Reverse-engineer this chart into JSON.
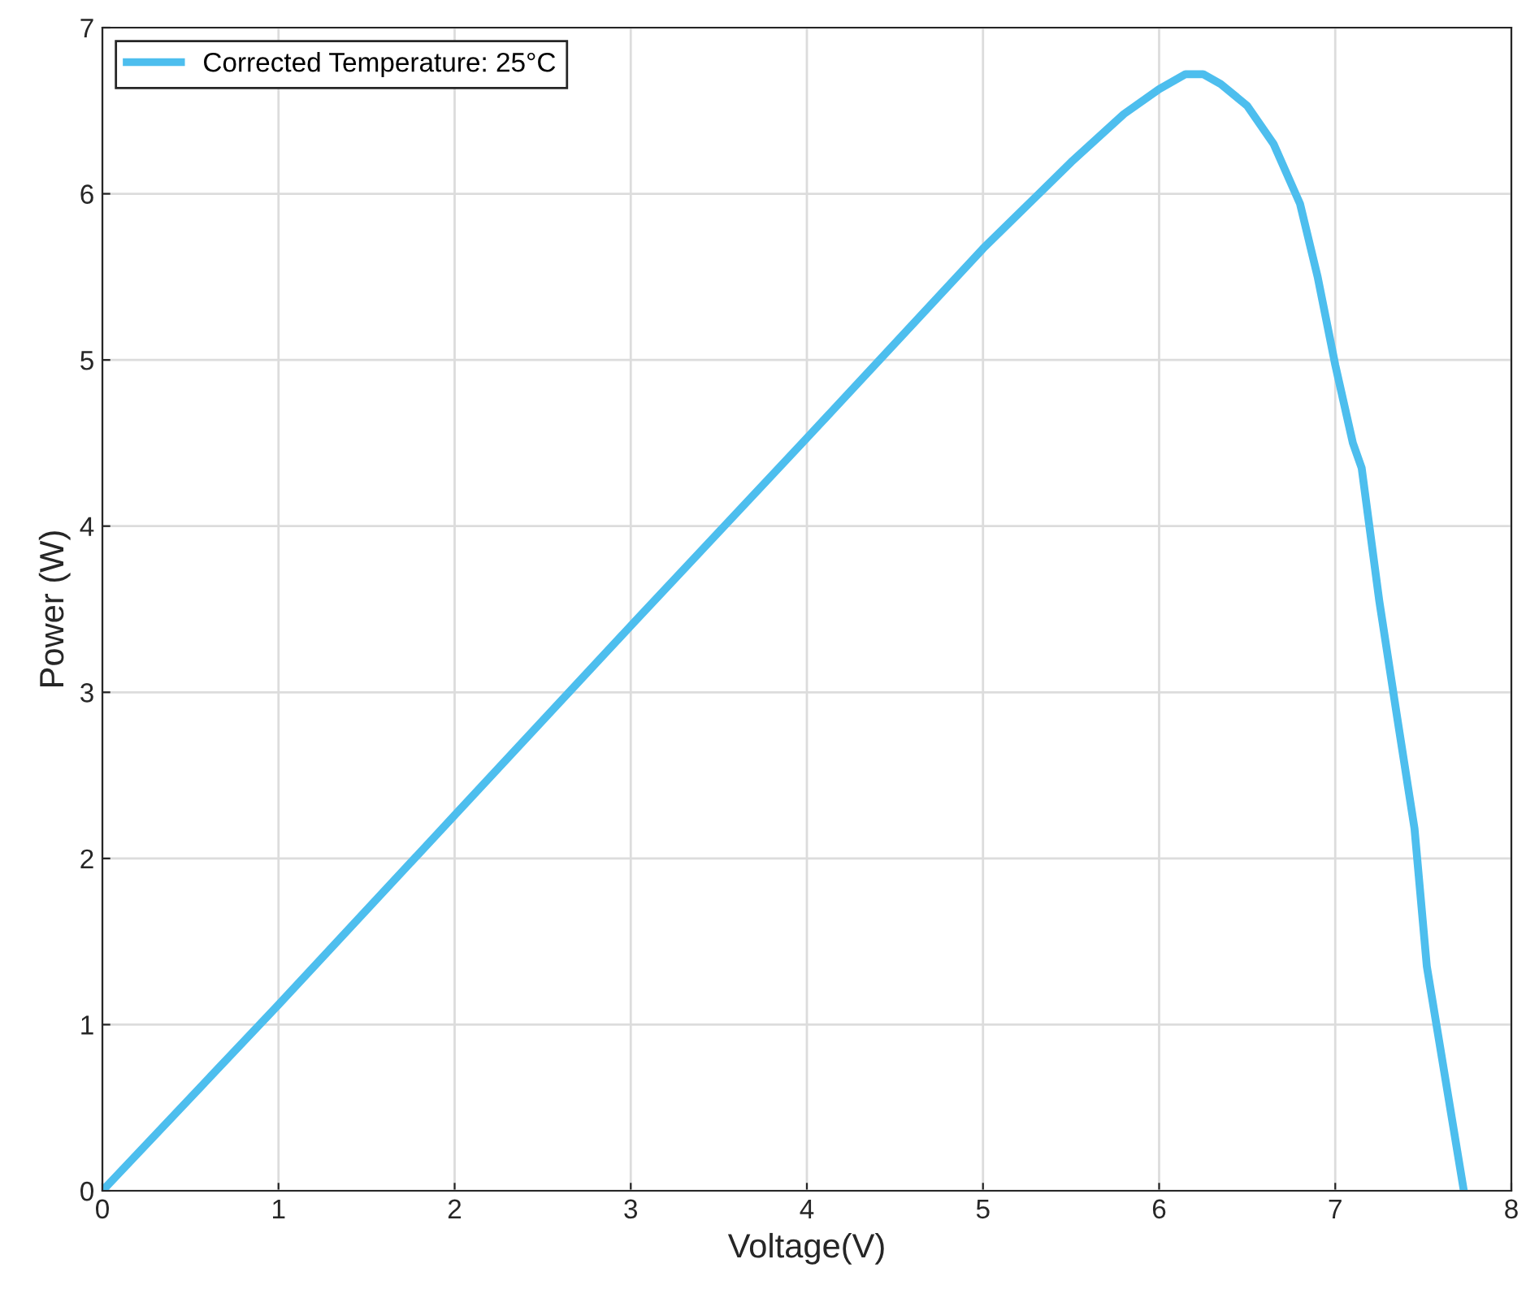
{
  "chart_data": {
    "type": "line",
    "xlabel": "Voltage(V)",
    "ylabel": "Power (W)",
    "series": [
      {
        "name": "Corrected Temperature: 25°C",
        "color": "#4dbeee",
        "x": [
          0,
          1,
          2,
          3,
          4,
          5,
          5.5,
          5.8,
          6.0,
          6.15,
          6.25,
          6.35,
          6.5,
          6.65,
          6.8,
          6.9,
          7.0,
          7.1,
          7.15,
          7.25,
          7.35,
          7.45,
          7.52,
          7.73
        ],
        "values": [
          0,
          1.12,
          2.26,
          3.4,
          4.53,
          5.67,
          6.19,
          6.48,
          6.63,
          6.72,
          6.72,
          6.66,
          6.53,
          6.3,
          5.94,
          5.5,
          4.97,
          4.5,
          4.35,
          3.55,
          2.86,
          2.18,
          1.35,
          0
        ]
      }
    ],
    "xlim": [
      0,
      8
    ],
    "ylim": [
      0,
      7
    ],
    "xticks": [
      0,
      1,
      2,
      3,
      4,
      5,
      6,
      7,
      8
    ],
    "yticks": [
      0,
      1,
      2,
      3,
      4,
      5,
      6,
      7
    ],
    "grid": true,
    "legend": "top left",
    "marker": "none",
    "line_style": "solid"
  }
}
